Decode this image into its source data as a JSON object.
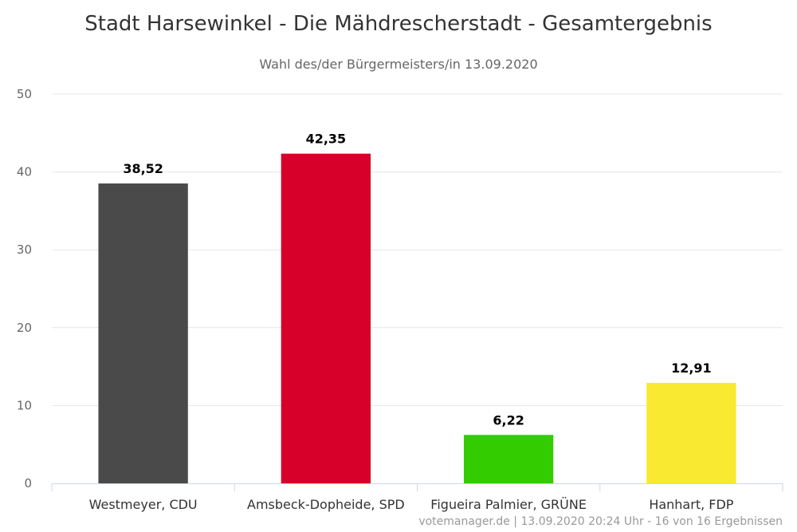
{
  "chart_data": {
    "type": "bar",
    "title": "Stadt Harsewinkel - Die Mähdrescherstadt - Gesamtergebnis",
    "subtitle": "Wahl des/der Bürgermeisters/in 13.09.2020",
    "categories": [
      "Westmeyer, CDU",
      "Amsbeck-Dopheide, SPD",
      "Figueira Palmier, GRÜNE",
      "Hanhart, FDP"
    ],
    "values": [
      38.52,
      42.35,
      6.22,
      12.91
    ],
    "value_labels": [
      "38,52",
      "42,35",
      "6,22",
      "12,91"
    ],
    "colors": [
      "#4a4a4a",
      "#d6002a",
      "#33cc00",
      "#f9e931"
    ],
    "yticks": [
      0,
      10,
      20,
      30,
      40,
      50
    ],
    "ylim": [
      0,
      50
    ],
    "grid": true,
    "xlabel": "",
    "ylabel": ""
  },
  "credits": "votemanager.de | 13.09.2020 20:24 Uhr - 16 von 16 Ergebnissen"
}
